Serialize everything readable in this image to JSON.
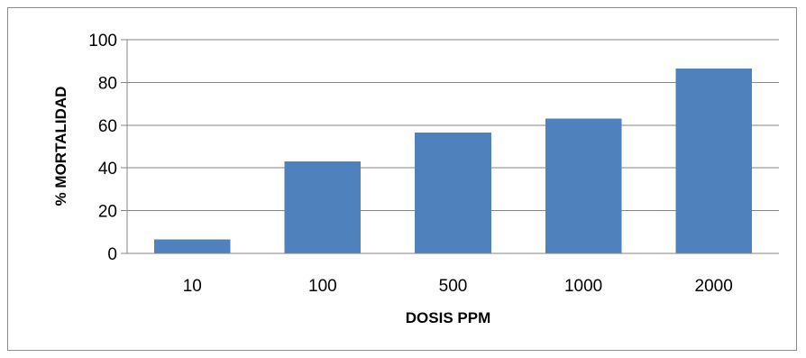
{
  "chart_data": {
    "type": "bar",
    "title": "",
    "xlabel": "DOSIS PPM",
    "ylabel": "% MORTALIDAD",
    "categories": [
      "10",
      "100",
      "500",
      "1000",
      "2000"
    ],
    "values": [
      6.5,
      43,
      56.5,
      63,
      86.5
    ],
    "ylim": [
      0,
      100
    ],
    "yticks": [
      0,
      20,
      40,
      60,
      80,
      100
    ],
    "grid": true,
    "legend": "none",
    "bar_color": "#4f81bd",
    "grid_color": "#868686"
  }
}
